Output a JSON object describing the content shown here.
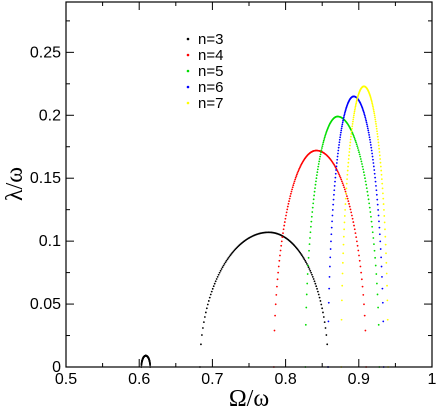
{
  "chart_data": {
    "type": "scatter",
    "xlabel": "Ω/ω",
    "ylabel": "λ/ω",
    "xlim": [
      0.5,
      1.0
    ],
    "ylim": [
      0,
      0.29
    ],
    "x_ticks": [
      "0.5",
      "0.6",
      "0.7",
      "0.8",
      "0.9",
      "1"
    ],
    "y_ticks": [
      "0",
      "0.05",
      "0.1",
      "0.15",
      "0.2",
      "0.25"
    ],
    "x_tick_values": [
      0.5,
      0.6,
      0.7,
      0.8,
      0.9,
      1.0
    ],
    "y_tick_values": [
      0,
      0.05,
      0.1,
      0.15,
      0.2,
      0.25
    ],
    "grid": false,
    "legend_position": "top-left",
    "series": [
      {
        "name": "n=3",
        "color": "#000000",
        "arcs": [
          {
            "x_start": 0.683,
            "x_peak": 0.777,
            "y_peak": 0.107,
            "x_end": 0.858
          },
          {
            "x_start": 0.603,
            "x_peak": 0.609,
            "y_peak": 0.009,
            "x_end": 0.615
          }
        ]
      },
      {
        "name": "n=4",
        "color": "#ff0000",
        "arcs": [
          {
            "x_start": 0.784,
            "x_peak": 0.842,
            "y_peak": 0.172,
            "x_end": 0.91
          }
        ]
      },
      {
        "name": "n=5",
        "color": "#00dd00",
        "arcs": [
          {
            "x_start": 0.827,
            "x_peak": 0.871,
            "y_peak": 0.199,
            "x_end": 0.928
          }
        ]
      },
      {
        "name": "n=6",
        "color": "#0000ff",
        "arcs": [
          {
            "x_start": 0.858,
            "x_peak": 0.893,
            "y_peak": 0.215,
            "x_end": 0.934
          }
        ]
      },
      {
        "name": "n=7",
        "color": "#ffff00",
        "arcs": [
          {
            "x_start": 0.876,
            "x_peak": 0.907,
            "y_peak": 0.223,
            "x_end": 0.94
          }
        ]
      }
    ]
  }
}
